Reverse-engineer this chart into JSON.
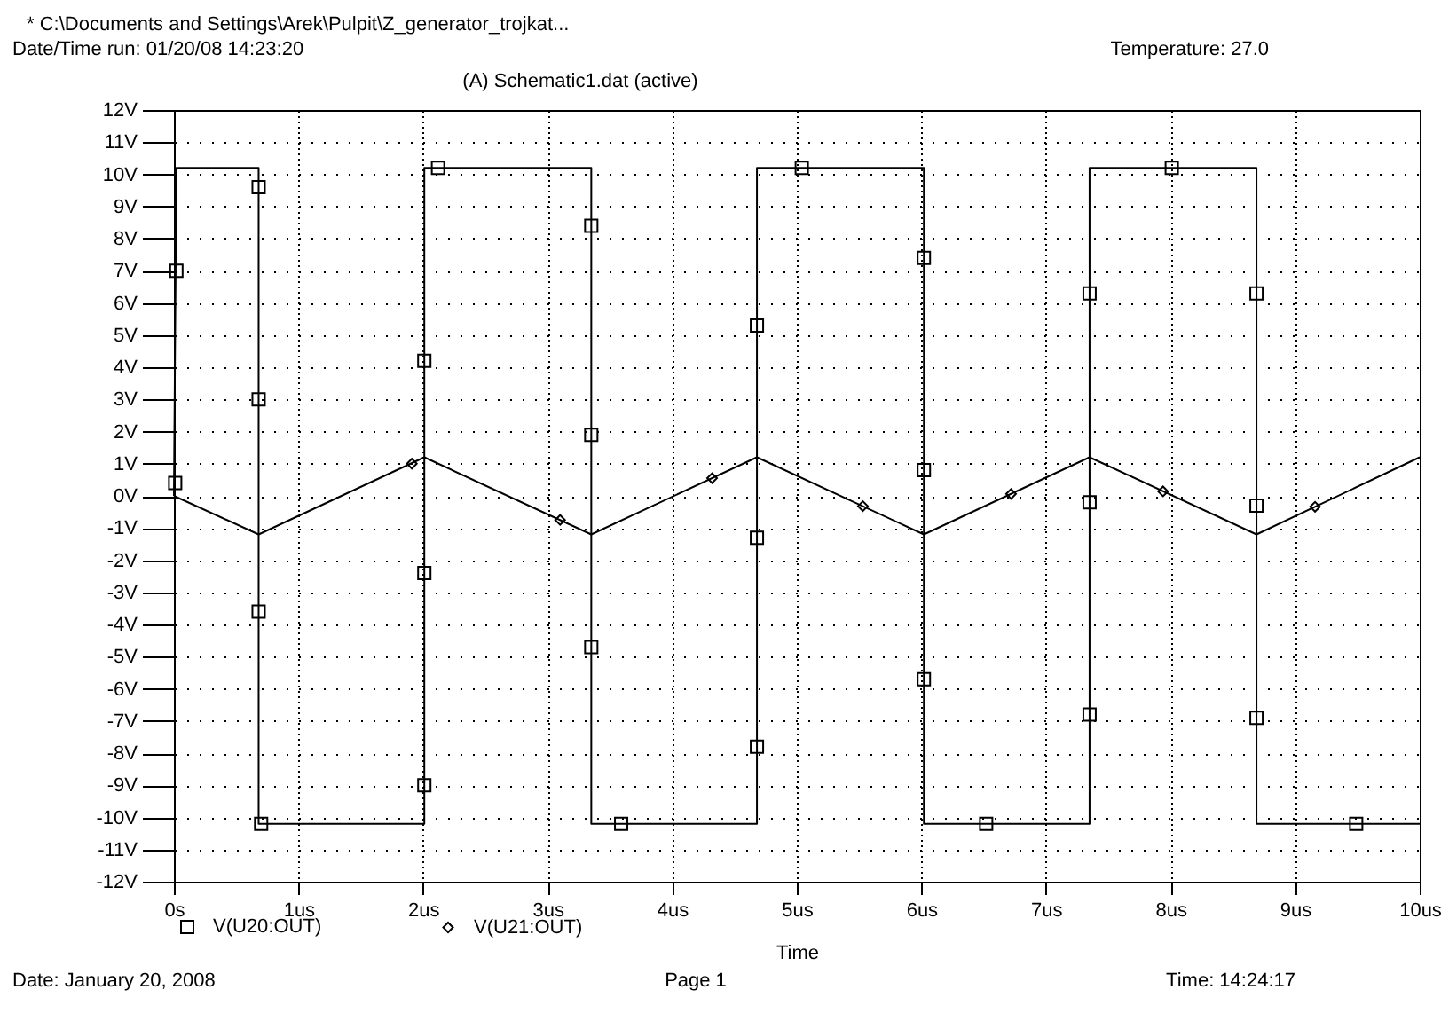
{
  "chart_data": {
    "type": "line",
    "title": "(A) Schematic1.dat (active)",
    "xlabel": "Time",
    "annotations": [
      "* C:\\Documents and Settings\\Arek\\Pulpit\\Z_generator_trojkat...",
      "Date/Time run: 01/20/08 14:23:20",
      "Temperature: 27.0",
      "Date: January 20, 2008",
      "Page 1",
      "Time: 14:24:17"
    ],
    "xlim": [
      0,
      10
    ],
    "ylim": [
      -12,
      12
    ],
    "xticks": [
      {
        "value": 0,
        "label": "0s"
      },
      {
        "value": 1,
        "label": "1us"
      },
      {
        "value": 2,
        "label": "2us"
      },
      {
        "value": 3,
        "label": "3us"
      },
      {
        "value": 4,
        "label": "4us"
      },
      {
        "value": 5,
        "label": "5us"
      },
      {
        "value": 6,
        "label": "6us"
      },
      {
        "value": 7,
        "label": "7us"
      },
      {
        "value": 8,
        "label": "8us"
      },
      {
        "value": 9,
        "label": "9us"
      },
      {
        "value": 10,
        "label": "10us"
      }
    ],
    "yticks": [
      {
        "value": -12,
        "label": "-12V"
      },
      {
        "value": -11,
        "label": "-11V"
      },
      {
        "value": -10,
        "label": "-10V"
      },
      {
        "value": -9,
        "label": "-9V"
      },
      {
        "value": -8,
        "label": "-8V"
      },
      {
        "value": -7,
        "label": "-7V"
      },
      {
        "value": -6,
        "label": "-6V"
      },
      {
        "value": -5,
        "label": "-5V"
      },
      {
        "value": -4,
        "label": "-4V"
      },
      {
        "value": -3,
        "label": "-3V"
      },
      {
        "value": -2,
        "label": "-2V"
      },
      {
        "value": -1,
        "label": "-1V"
      },
      {
        "value": 0,
        "label": "0V"
      },
      {
        "value": 1,
        "label": "1V"
      },
      {
        "value": 2,
        "label": "2V"
      },
      {
        "value": 3,
        "label": "3V"
      },
      {
        "value": 4,
        "label": "4V"
      },
      {
        "value": 5,
        "label": "5V"
      },
      {
        "value": 6,
        "label": "6V"
      },
      {
        "value": 7,
        "label": "7V"
      },
      {
        "value": 8,
        "label": "8V"
      },
      {
        "value": 9,
        "label": "9V"
      },
      {
        "value": 10,
        "label": "10V"
      },
      {
        "value": 11,
        "label": "11V"
      },
      {
        "value": 12,
        "label": "12V"
      }
    ],
    "grid": true,
    "legend": "bottom",
    "series": [
      {
        "color": "#000000",
        "x": [
          0,
          0.02,
          0.68,
          0.68,
          2.01,
          2.01,
          3.35,
          3.35,
          4.68,
          4.68,
          6.02,
          6.02,
          7.35,
          7.35,
          8.69,
          8.69,
          10
        ],
        "values": [
          0,
          10.2,
          10.2,
          -10.2,
          -10.2,
          10.2,
          10.2,
          -10.2,
          -10.2,
          10.2,
          10.2,
          -10.2,
          -10.2,
          10.2,
          10.2,
          -10.2,
          -10.2
        ]
      },
      {
        "color": "#000000",
        "x": [
          0,
          0.68,
          2.01,
          3.35,
          4.68,
          6.02,
          7.35,
          8.69,
          10
        ],
        "values": [
          0,
          -1.2,
          1.2,
          -1.2,
          1.2,
          -1.2,
          1.2,
          -1.2,
          1.2
        ]
      },
      {
        "type": "scatter",
        "name": "V(U20:OUT)",
        "marker": "square",
        "color": "#000000",
        "x": [
          0.01,
          0.02,
          0.68,
          0.68,
          0.68,
          0.7,
          2.01,
          2.01,
          2.01,
          2.12,
          3.35,
          3.35,
          3.35,
          3.59,
          4.68,
          4.68,
          4.68,
          5.04,
          6.02,
          6.02,
          6.02,
          6.52,
          7.35,
          7.35,
          7.35,
          8.01,
          8.69,
          8.69,
          8.69,
          9.49
        ],
        "values": [
          0.4,
          7.0,
          9.6,
          3.0,
          -3.6,
          -10.2,
          -9.0,
          -2.4,
          4.2,
          10.2,
          8.4,
          1.9,
          -4.7,
          -10.2,
          -7.8,
          -1.3,
          5.3,
          10.2,
          7.4,
          0.8,
          -5.7,
          -10.2,
          -6.8,
          -0.2,
          6.3,
          10.2,
          6.3,
          -0.3,
          -6.9,
          -10.2
        ]
      },
      {
        "type": "scatter",
        "name": "V(U21:OUT)",
        "marker": "diamond",
        "color": "#000000",
        "x": [
          1.91,
          3.1,
          4.32,
          5.53,
          6.72,
          7.94,
          9.16
        ],
        "values": [
          1.0,
          -0.75,
          0.55,
          -0.32,
          0.06,
          0.14,
          -0.34
        ]
      }
    ]
  }
}
